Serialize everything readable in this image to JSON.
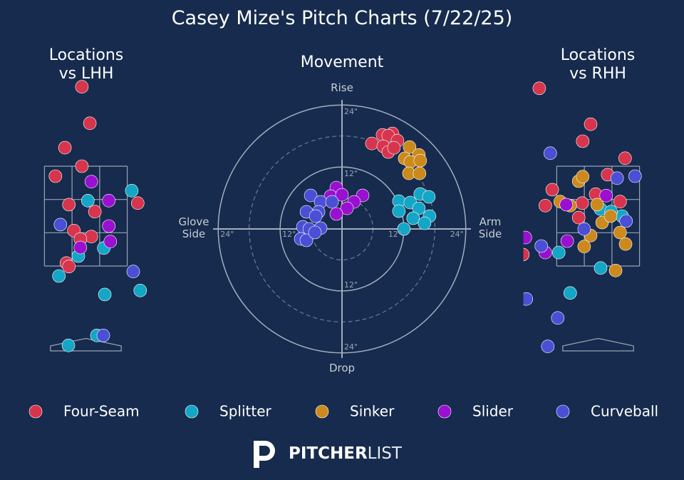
{
  "title": "Casey Mize's Pitch Charts (7/22/25)",
  "pitch_types": [
    {
      "name": "Four-Seam",
      "color": "#d7354d"
    },
    {
      "name": "Splitter",
      "color": "#13a6c6"
    },
    {
      "name": "Sinker",
      "color": "#cc8a1c"
    },
    {
      "name": "Slider",
      "color": "#9a10d0"
    },
    {
      "name": "Curveball",
      "color": "#4a4fd6"
    }
  ],
  "chart_data": [
    {
      "type": "scatter",
      "title": "Locations\nvs LHH",
      "xlim": [
        -1.0,
        1.3
      ],
      "ylim": [
        -0.45,
        5.25
      ],
      "strike_zone": true,
      "home_plate": true,
      "series": [
        {
          "x": [
            -0.08,
            0.08,
            -0.42,
            -0.08,
            -0.61,
            -0.34,
            0.18,
            1.04,
            -0.24,
            0.11,
            -0.11,
            -0.39,
            -0.34
          ],
          "y": [
            5.09,
            4.36,
            3.87,
            3.5,
            3.3,
            2.73,
            2.59,
            2.76,
            2.21,
            2.09,
            2.04,
            1.56,
            1.49
          ]
        },
        {
          "x": [
            0.92,
            0.04,
            0.36,
            -0.15,
            -0.54,
            0.38,
            1.09,
            0.22,
            -0.35
          ],
          "y": [
            3.01,
            2.81,
            1.86,
            1.7,
            1.3,
            0.93,
            1.01,
            0.11,
            -0.09
          ]
        },
        {
          "x": [],
          "y": []
        },
        {
          "x": [
            0.11,
            0.46,
            0.46,
            0.49,
            -0.11
          ],
          "y": [
            3.19,
            2.81,
            2.3,
            1.99,
            1.87
          ]
        },
        {
          "x": [
            -0.51,
            0.95,
            0.35
          ],
          "y": [
            2.33,
            1.39,
            0.11
          ]
        }
      ]
    },
    {
      "type": "scatter",
      "title": "Movement",
      "xlim": [
        -25,
        25
      ],
      "ylim": [
        -25,
        25
      ],
      "rings": [
        {
          "value": 12,
          "label": "12\""
        },
        {
          "value": 24,
          "label": "24\""
        }
      ],
      "minor_rings": [
        6,
        18
      ],
      "labels": {
        "top": "Rise",
        "bottom": "Drop",
        "left": "Glove\nSide",
        "right": "Arm\nSide"
      },
      "series": [
        {
          "x": [
            5.79,
            7.86,
            9.79,
            8.97,
            10.76,
            8.0,
            8.97,
            10.07
          ],
          "y": [
            16.55,
            18.21,
            18.48,
            18.07,
            17.1,
            16.0,
            14.9,
            15.72
          ]
        },
        {
          "x": [
            11.03,
            13.24,
            15.17,
            16.83,
            11.03,
            14.9,
            13.79,
            16.97,
            12.0,
            16.0
          ],
          "y": [
            5.38,
            5.1,
            6.76,
            6.21,
            3.45,
            4.0,
            2.07,
            2.48,
            0.0,
            1.1
          ]
        },
        {
          "x": [
            13.1,
            14.9,
            12.14,
            13.24,
            15.17,
            12.97,
            15.03
          ],
          "y": [
            15.86,
            14.34,
            13.66,
            12.97,
            13.24,
            10.76,
            10.76
          ]
        },
        {
          "x": [
            -1.1,
            -2.21,
            0,
            4.0,
            2.34,
            0.97,
            -1.1
          ],
          "y": [
            8.0,
            6.34,
            6.62,
            6.48,
            5.24,
            4.0,
            2.9
          ]
        },
        {
          "x": [
            -6.07,
            -4.14,
            -1.93,
            -6.9,
            -4.55,
            -5.1,
            -7.59,
            -6.34,
            -4.14,
            -8.0,
            -6.9,
            -5.24
          ],
          "y": [
            6.48,
            5.24,
            5.24,
            3.31,
            3.31,
            2.48,
            0.41,
            0,
            0.14,
            -1.93,
            -2.21,
            -0.69
          ]
        }
      ]
    },
    {
      "type": "scatter",
      "title": "Locations\nvs RHH",
      "xlim": [
        -1.5,
        1.0
      ],
      "ylim": [
        -0.45,
        5.25
      ],
      "strike_zone": true,
      "home_plate": true,
      "series": [
        {
          "x": [
            -1.18,
            -0.15,
            -0.31,
            0.54,
            0.19,
            -0.92,
            -1.06,
            -0.05,
            0.44,
            -0.32,
            -0.39,
            -1.51
          ],
          "y": [
            5.06,
            4.34,
            4.0,
            3.66,
            3.33,
            3.03,
            2.71,
            2.94,
            2.79,
            2.76,
            2.47,
            1.73
          ]
        },
        {
          "x": [
            0.05,
            0.48,
            -0.79,
            0.05,
            -0.56,
            0.26
          ],
          "y": [
            2.64,
            2.5,
            1.77,
            1.46,
            0.96,
            2.59
          ]
        },
        {
          "x": [
            -0.39,
            -0.31,
            -0.76,
            -0.56,
            -0.02,
            -0.15,
            0.08,
            0.25,
            0.44,
            0.55,
            -0.28,
            0.35
          ],
          "y": [
            3.2,
            3.29,
            2.79,
            2.71,
            2.73,
            2.11,
            2.37,
            2.5,
            2.17,
            1.94,
            1.89,
            1.41
          ]
        },
        {
          "x": [
            0.16,
            -0.64,
            -0.62,
            -1.06,
            -1.46
          ],
          "y": [
            2.91,
            2.73,
            2.0,
            1.77,
            2.07
          ]
        },
        {
          "x": [
            -0.96,
            0.38,
            0.74,
            -0.28,
            -1.14,
            0.56,
            -1.44,
            -0.81,
            -1.01
          ],
          "y": [
            3.76,
            3.26,
            3.3,
            2.24,
            1.9,
            2.4,
            0.84,
            0.46,
            -0.11
          ]
        }
      ]
    }
  ],
  "logo": {
    "bold": "PITCHER",
    "light": "LIST"
  }
}
